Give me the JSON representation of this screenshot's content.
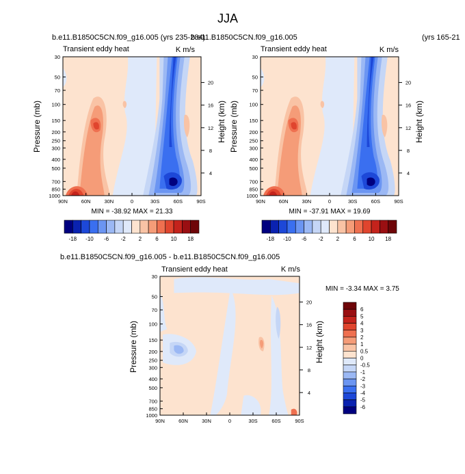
{
  "page": {
    "title": "JJA"
  },
  "chart_data": [
    {
      "type": "heatmap",
      "case_label": "b.e11.B1850C5CN.f09_g16.005 (yrs 235-284)",
      "subtitle": "Transient eddy heat",
      "units": "K m/s",
      "xlabel": "",
      "ylabel": "Pressure (mb)",
      "ylabel_right": "Height (km)",
      "x_ticks": [
        "90N",
        "60N",
        "30N",
        "0",
        "30S",
        "60S",
        "90S"
      ],
      "y_ticks": [
        "30",
        "50",
        "70",
        "100",
        "150",
        "200",
        "250",
        "300",
        "400",
        "500",
        "700",
        "850",
        "1000"
      ],
      "height_ticks": [
        "4",
        "8",
        "12",
        "16",
        "20"
      ],
      "min_max_text": "MIN = -38.92   MAX =  21.33",
      "min": -38.92,
      "max": 21.33,
      "colorbar_labels": [
        "-18",
        "-10",
        "-6",
        "-2",
        "2",
        "6",
        "10",
        "18"
      ]
    },
    {
      "type": "heatmap",
      "case_label": "b.e11.B1850C5CN.f09_g16.005",
      "case_label_right": "(yrs 165-21",
      "subtitle": "Transient eddy heat",
      "units": "K m/s",
      "xlabel": "",
      "ylabel": "Pressure (mb)",
      "ylabel_right": "Height (km)",
      "x_ticks": [
        "90N",
        "60N",
        "30N",
        "0",
        "30S",
        "60S",
        "90S"
      ],
      "y_ticks": [
        "30",
        "50",
        "70",
        "100",
        "150",
        "200",
        "250",
        "300",
        "400",
        "500",
        "700",
        "850",
        "1000"
      ],
      "height_ticks": [
        "4",
        "8",
        "12",
        "16",
        "20"
      ],
      "min_max_text": "MIN = -37.91   MAX =  19.69",
      "min": -37.91,
      "max": 19.69,
      "colorbar_labels": [
        "-18",
        "-10",
        "-6",
        "-2",
        "2",
        "6",
        "10",
        "18"
      ]
    },
    {
      "type": "heatmap",
      "case_label": "b.e11.B1850C5CN.f09_g16.005 - b.e11.B1850C5CN.f09_g16.005",
      "subtitle": "Transient eddy heat",
      "units": "K m/s",
      "xlabel": "",
      "ylabel": "Pressure (mb)",
      "ylabel_right": "Height (km)",
      "x_ticks": [
        "90N",
        "60N",
        "30N",
        "0",
        "30S",
        "60S",
        "90S"
      ],
      "y_ticks": [
        "30",
        "50",
        "70",
        "100",
        "150",
        "200",
        "250",
        "300",
        "400",
        "500",
        "700",
        "850",
        "1000"
      ],
      "height_ticks": [
        "4",
        "8",
        "12",
        "16",
        "20"
      ],
      "min_max_text": "MIN = -3.34   MAX =  3.75",
      "min": -3.34,
      "max": 3.75,
      "colorbar_labels": [
        "6",
        "5",
        "4",
        "3",
        "2",
        "1",
        "0.5",
        "0",
        "-0.5",
        "-1",
        "-2",
        "-3",
        "-4",
        "-5",
        "-6"
      ]
    }
  ],
  "colors": {
    "abs_scale": [
      "#00007f",
      "#0a22b0",
      "#1d48d8",
      "#3a6ff0",
      "#6b95f2",
      "#9bb8f4",
      "#c5d6f6",
      "#dfe9fa",
      "#fde3cf",
      "#f9c3a5",
      "#f59c78",
      "#ef7050",
      "#e0452e",
      "#c4231c",
      "#9a0f12",
      "#6e0508"
    ],
    "diff_scale": [
      "#00007f",
      "#0a22b0",
      "#1d48d8",
      "#3a6ff0",
      "#6b95f2",
      "#9bb8f4",
      "#c5d6f6",
      "#dfe9fa",
      "#fde3cf",
      "#f9c3a5",
      "#f59c78",
      "#ef7050",
      "#e0452e",
      "#c4231c",
      "#9a0f12",
      "#6e0508"
    ]
  }
}
